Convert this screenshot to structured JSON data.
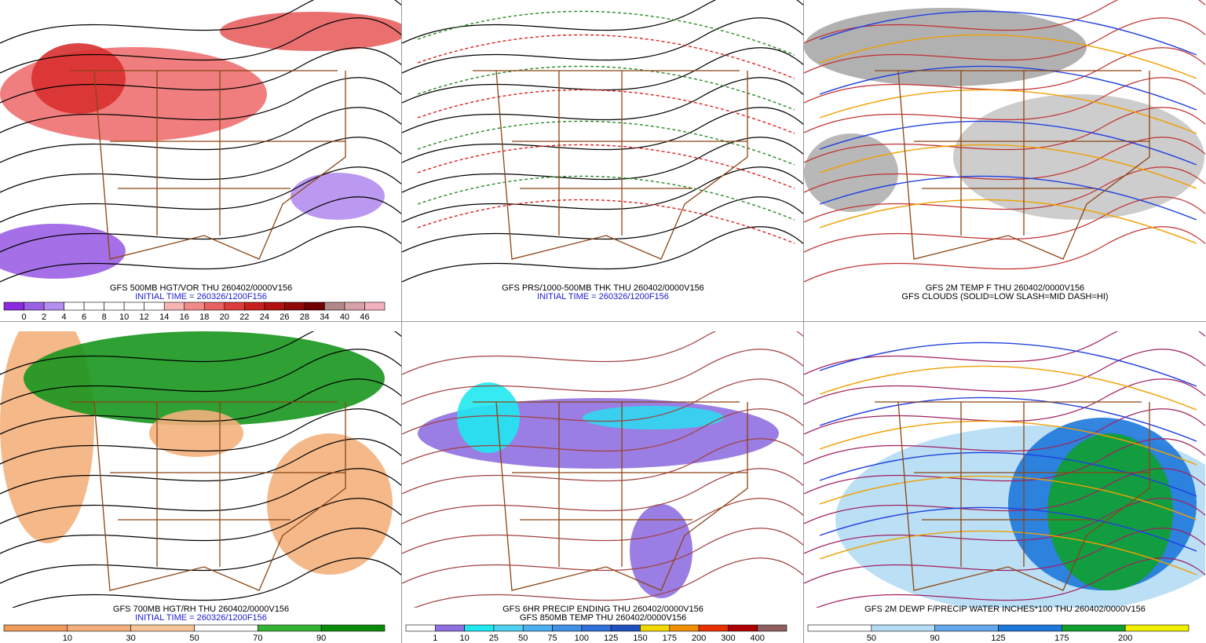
{
  "panels": [
    {
      "captions": [
        {
          "text": "GFS 500MB HGT/VOR THU 260402/0000V156",
          "color": "#000000"
        },
        {
          "text": "INITIAL TIME = 260326/1200F156",
          "color": "#1a1ad0"
        }
      ],
      "colorbar": {
        "labels": [
          0,
          2,
          4,
          6,
          8,
          10,
          12,
          14,
          16,
          18,
          20,
          22,
          24,
          26,
          28,
          34,
          40,
          46
        ],
        "colors": [
          "#8a2be2",
          "#9b5fe6",
          "#b48ef0",
          "#ffffff",
          "#ffffff",
          "#ffffff",
          "#ffffff",
          "#ffffff",
          "#f7b4b4",
          "#f08a8a",
          "#e86060",
          "#dc3c3c",
          "#c81e1e",
          "#b01010",
          "#900808",
          "#700000",
          "#b08888",
          "#d8a0a8",
          "#f2b0c0"
        ]
      }
    },
    {
      "captions": [
        {
          "text": "GFS PRS/1000-500MB THK THU 260402/0000V156",
          "color": "#000000"
        },
        {
          "text": "INITIAL TIME = 260326/1200F156",
          "color": "#1a1ad0"
        }
      ]
    },
    {
      "captions": [
        {
          "text": "GFS 2M TEMP F THU 260402/0000V156",
          "color": "#000000"
        },
        {
          "text": "GFS CLOUDS (SOLID=LOW SLASH=MID DASH=HI)",
          "color": "#000000"
        }
      ]
    },
    {
      "captions": [
        {
          "text": "GFS 700MB HGT/RH THU 260402/0000V156",
          "color": "#000000"
        },
        {
          "text": "INITIAL TIME = 260326/1200F156",
          "color": "#1a1ad0"
        }
      ],
      "colorbar": {
        "labels": [
          10,
          30,
          50,
          70,
          90
        ],
        "colors": [
          "#f09a5c",
          "#f4b07c",
          "#f7c49a",
          "#ffffff",
          "#32b432",
          "#0a8c0a"
        ]
      }
    },
    {
      "captions": [
        {
          "text": "GFS 6HR PRECIP ENDING THU 260402/0000V156",
          "color": "#000000"
        },
        {
          "text": "GFS 850MB TEMP THU 260402/0000V156",
          "color": "#000000"
        }
      ],
      "colorbar": {
        "labels": [
          1,
          10,
          25,
          50,
          75,
          100,
          125,
          150,
          175,
          200,
          300,
          400
        ],
        "colors": [
          "#ffffff",
          "#9070e0",
          "#20e8f0",
          "#50d0f0",
          "#4ab0f0",
          "#4090e8",
          "#3070d8",
          "#2050c0",
          "#f0d800",
          "#f09000",
          "#e83000",
          "#b00000",
          "#906060"
        ]
      }
    },
    {
      "captions": [
        {
          "text": "GFS 2M DEWP F/PRECIP WATER INCHES*100 THU 260402/0000V156",
          "color": "#000000"
        }
      ],
      "colorbar": {
        "labels": [
          50,
          90,
          125,
          175,
          200
        ],
        "colors": [
          "#ffffff",
          "#b4dcf4",
          "#64a8ec",
          "#1e78dc",
          "#10a030",
          "#f0f000"
        ]
      }
    }
  ]
}
